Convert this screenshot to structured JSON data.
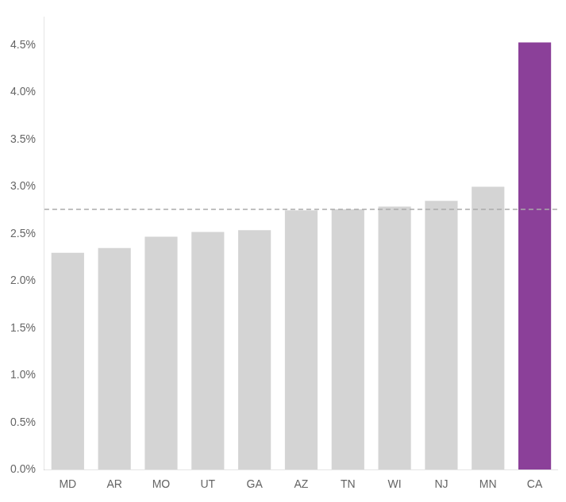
{
  "chart_data": {
    "type": "bar",
    "categories": [
      "MD",
      "AR",
      "MO",
      "UT",
      "GA",
      "AZ",
      "TN",
      "WI",
      "NJ",
      "MN",
      "CA"
    ],
    "values": [
      2.3,
      2.35,
      2.47,
      2.52,
      2.54,
      2.75,
      2.76,
      2.79,
      2.85,
      3.0,
      4.53
    ],
    "colors": [
      "#d4d4d4",
      "#d4d4d4",
      "#d4d4d4",
      "#d4d4d4",
      "#d4d4d4",
      "#d4d4d4",
      "#d4d4d4",
      "#d4d4d4",
      "#d4d4d4",
      "#d4d4d4",
      "#8b4099"
    ],
    "ylim": [
      0.0,
      4.8
    ],
    "yticks": [
      {
        "value": 0.0,
        "label": "0.0%"
      },
      {
        "value": 0.5,
        "label": "0.5%"
      },
      {
        "value": 1.0,
        "label": "1.0%"
      },
      {
        "value": 1.5,
        "label": "1.5%"
      },
      {
        "value": 2.0,
        "label": "2.0%"
      },
      {
        "value": 2.5,
        "label": "2.5%"
      },
      {
        "value": 3.0,
        "label": "3.0%"
      },
      {
        "value": 3.5,
        "label": "3.5%"
      },
      {
        "value": 4.0,
        "label": "4.0%"
      },
      {
        "value": 4.5,
        "label": "4.5%"
      }
    ],
    "grid": false,
    "reference_line": {
      "value": 2.76,
      "color": "#aaaaaa",
      "line_style": "dashed"
    }
  }
}
